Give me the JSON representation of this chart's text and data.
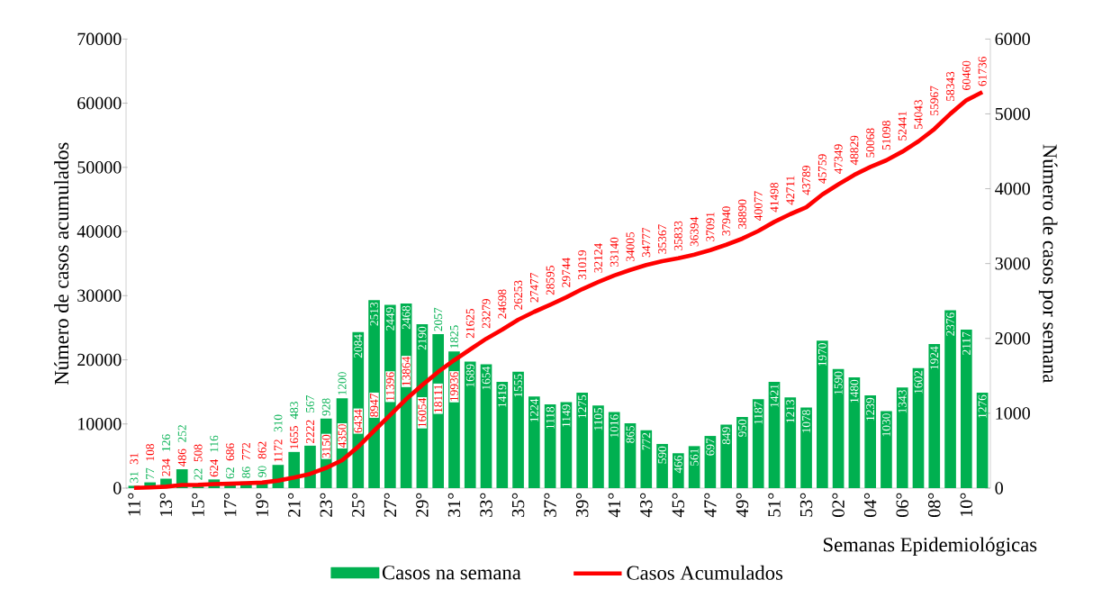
{
  "chart_data": {
    "type": "bar",
    "xlabel": "Semanas Epidemiológicas",
    "ylabel": "Número de casos acumulados",
    "y2label": "Número de casos por semana",
    "categories": [
      "11°",
      null,
      "13°",
      null,
      "15°",
      null,
      "17°",
      null,
      "19°",
      null,
      "21°",
      null,
      "23°",
      null,
      "25°",
      null,
      "27°",
      null,
      "29°",
      null,
      "31°",
      null,
      "33°",
      null,
      "35°",
      null,
      "37°",
      null,
      "39°",
      null,
      "41°",
      null,
      "43°",
      null,
      "45°",
      null,
      "47°",
      null,
      "49°",
      null,
      "51°",
      null,
      "53°",
      null,
      "02°",
      null,
      "04°",
      null,
      "06°",
      null,
      "08°",
      null,
      "10°",
      null
    ],
    "series": [
      {
        "name": "Casos na semana",
        "axis": "y2",
        "color": "#00b050",
        "values": [
          31,
          77,
          126,
          252,
          22,
          116,
          62,
          86,
          90,
          310,
          483,
          567,
          928,
          1200,
          2084,
          2513,
          2449,
          2468,
          2190,
          2057,
          1825,
          1689,
          1654,
          1419,
          1555,
          1224,
          1118,
          1149,
          1275,
          1105,
          1016,
          865,
          772,
          590,
          466,
          561,
          697,
          849,
          950,
          1187,
          1421,
          1213,
          1078,
          1970,
          1590,
          1480,
          1239,
          1030,
          1343,
          1602,
          1924,
          2376,
          2117,
          1276
        ]
      },
      {
        "name": "Casos Acumulados",
        "type": "line",
        "axis": "y",
        "color": "#ff0000",
        "values": [
          31,
          108,
          234,
          486,
          508,
          624,
          686,
          772,
          862,
          1172,
          1655,
          2222,
          3150,
          4350,
          6434,
          8947,
          11396,
          13864,
          16054,
          18111,
          19936,
          21625,
          23279,
          24698,
          26253,
          27477,
          28595,
          29744,
          31019,
          32124,
          33140,
          34005,
          34777,
          35367,
          35833,
          36394,
          37091,
          37940,
          38890,
          40077,
          41498,
          42711,
          43789,
          45759,
          47349,
          48829,
          50068,
          51098,
          52441,
          54043,
          55967,
          58343,
          60460,
          61736
        ]
      }
    ],
    "ylim": [
      0,
      70000
    ],
    "yticks": [
      0,
      10000,
      20000,
      30000,
      40000,
      50000,
      60000,
      70000
    ],
    "y2lim": [
      0,
      6000
    ],
    "y2ticks": [
      0,
      1000,
      2000,
      3000,
      4000,
      5000,
      6000
    ],
    "data_labels": true,
    "legend": "bottom"
  }
}
